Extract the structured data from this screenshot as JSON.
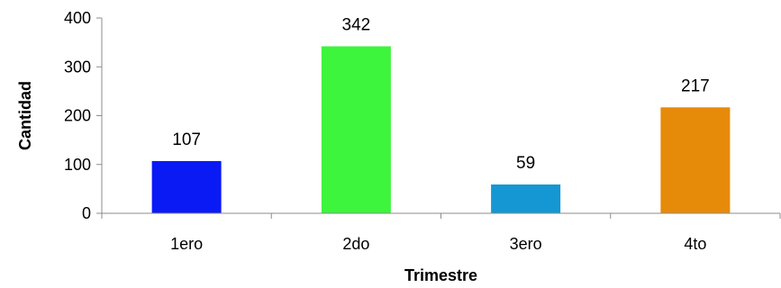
{
  "chart_data": {
    "type": "bar",
    "categories": [
      "1ero",
      "2do",
      "3ero",
      "4to"
    ],
    "values": [
      107,
      342,
      59,
      217
    ],
    "colors": [
      "#0a1af5",
      "#3cf53c",
      "#1497d2",
      "#e68a0a"
    ],
    "xlabel": "Trimestre",
    "ylabel": "Cantidad",
    "ylim": [
      0,
      400
    ],
    "yticks": [
      0,
      100,
      200,
      300,
      400
    ],
    "grid": false,
    "legend": "none"
  }
}
